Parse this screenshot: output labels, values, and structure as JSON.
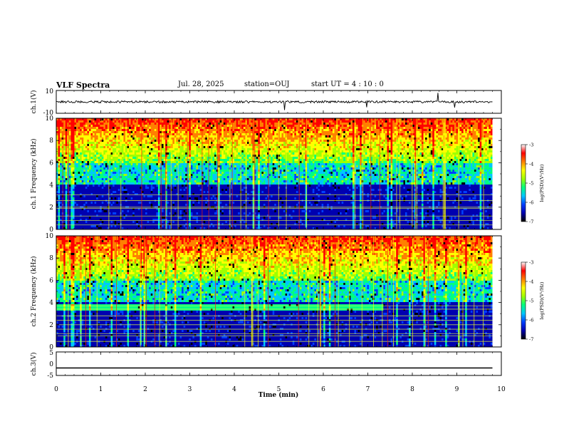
{
  "header": {
    "title": "VLF Spectra",
    "date": "Jul. 28, 2025",
    "station": "station=OUJ",
    "start": "start UT =  4 : 10 : 0"
  },
  "chart_data": [
    {
      "type": "line",
      "name": "ch1-waveform",
      "ylabel": "ch.1(V)",
      "ylim": [
        -10,
        10
      ],
      "yticks": [
        "10",
        "-10"
      ],
      "xlim": [
        0,
        10
      ]
    },
    {
      "type": "heatmap",
      "name": "ch1-spectrogram",
      "ylabel": "ch.1 Frequency (kHz)",
      "ylim": [
        0,
        10
      ],
      "yticks": [
        "0",
        "2",
        "4",
        "6",
        "8",
        "10"
      ],
      "xlim": [
        0,
        10
      ],
      "colorbar": {
        "label": "log(PSD)(V²/Hz)",
        "range": [
          -7,
          -3
        ],
        "ticks": [
          "-3",
          "-4",
          "-5",
          "-6",
          "-7"
        ]
      }
    },
    {
      "type": "heatmap",
      "name": "ch2-spectrogram",
      "ylabel": "ch.2 Frequency (kHz)",
      "ylim": [
        0,
        10
      ],
      "yticks": [
        "0",
        "2",
        "4",
        "6",
        "8",
        "10"
      ],
      "xlim": [
        0,
        10
      ],
      "colorbar": {
        "label": "log(PSD)(V²/Hz)",
        "range": [
          -7,
          -3
        ],
        "ticks": [
          "-3",
          "-4",
          "-5",
          "-6",
          "-7"
        ]
      }
    },
    {
      "type": "line",
      "name": "ch3-waveform",
      "ylabel": "ch.3(V)",
      "ylim": [
        -5,
        5
      ],
      "yticks": [
        "5",
        "0",
        "-5"
      ],
      "xlim": [
        0,
        10
      ],
      "value": -1.8
    }
  ],
  "xaxis": {
    "label": "Time (min)",
    "ticks": [
      "0",
      "1",
      "2",
      "3",
      "4",
      "5",
      "6",
      "7",
      "8",
      "9",
      "10"
    ],
    "data_end": 9.8
  },
  "colors": {
    "scale": [
      "#000000",
      "#0000b0",
      "#0040ff",
      "#00c8ff",
      "#00ff80",
      "#a0ff00",
      "#ffff00",
      "#ff8000",
      "#ff0000",
      "#ffffff"
    ],
    "trace": "#000000"
  }
}
